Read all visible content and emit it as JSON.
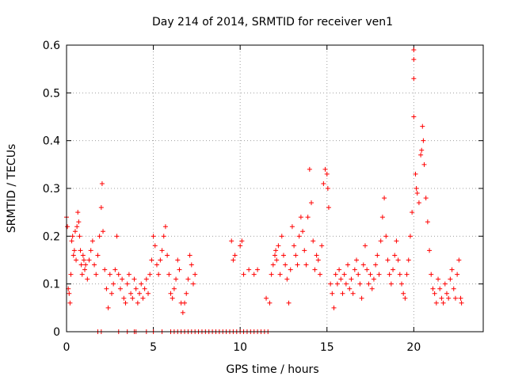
{
  "chart_data": {
    "type": "scatter",
    "title": "Day 214 of 2014, SRMTID for receiver ven1",
    "xlabel": "GPS time / hours",
    "ylabel": "SRMTID / TECUs",
    "xlim": [
      0,
      24
    ],
    "ylim": [
      0,
      0.6
    ],
    "xticks": [
      0,
      5,
      10,
      15,
      20
    ],
    "yticks": [
      0,
      0.1,
      0.2,
      0.3,
      0.4,
      0.5,
      0.6
    ],
    "xtick_labels": [
      "0",
      "5",
      "10",
      "15",
      "20"
    ],
    "ytick_labels": [
      "0",
      "0.1",
      "0.2",
      "0.3",
      "0.4",
      "0.5",
      "0.6"
    ],
    "grid": true,
    "marker": "+",
    "series": [
      {
        "name": "ven1",
        "color": "#ff0000",
        "points": [
          [
            0.0,
            0.24
          ],
          [
            0.05,
            0.22
          ],
          [
            0.1,
            0.09
          ],
          [
            0.15,
            0.08
          ],
          [
            0.2,
            0.06
          ],
          [
            0.25,
            0.12
          ],
          [
            0.3,
            0.19
          ],
          [
            0.35,
            0.2
          ],
          [
            0.4,
            0.16
          ],
          [
            0.45,
            0.17
          ],
          [
            0.5,
            0.21
          ],
          [
            0.55,
            0.15
          ],
          [
            0.6,
            0.22
          ],
          [
            0.65,
            0.25
          ],
          [
            0.7,
            0.23
          ],
          [
            0.75,
            0.2
          ],
          [
            0.8,
            0.17
          ],
          [
            0.85,
            0.14
          ],
          [
            0.9,
            0.12
          ],
          [
            0.95,
            0.16
          ],
          [
            1.0,
            0.15
          ],
          [
            1.05,
            0.13
          ],
          [
            1.1,
            0.14
          ],
          [
            1.2,
            0.11
          ],
          [
            1.3,
            0.15
          ],
          [
            1.4,
            0.17
          ],
          [
            1.5,
            0.19
          ],
          [
            1.6,
            0.14
          ],
          [
            1.7,
            0.12
          ],
          [
            1.8,
            0.16
          ],
          [
            1.9,
            0.2
          ],
          [
            2.0,
            0.26
          ],
          [
            2.05,
            0.31
          ],
          [
            2.1,
            0.21
          ],
          [
            2.2,
            0.13
          ],
          [
            2.3,
            0.09
          ],
          [
            2.4,
            0.05
          ],
          [
            2.5,
            0.12
          ],
          [
            2.6,
            0.08
          ],
          [
            2.7,
            0.1
          ],
          [
            2.8,
            0.13
          ],
          [
            2.9,
            0.2
          ],
          [
            3.0,
            0.12
          ],
          [
            3.1,
            0.09
          ],
          [
            3.2,
            0.11
          ],
          [
            3.3,
            0.07
          ],
          [
            3.4,
            0.06
          ],
          [
            3.5,
            0.1
          ],
          [
            3.6,
            0.12
          ],
          [
            3.7,
            0.08
          ],
          [
            3.8,
            0.07
          ],
          [
            3.9,
            0.11
          ],
          [
            4.0,
            0.09
          ],
          [
            4.1,
            0.06
          ],
          [
            4.2,
            0.08
          ],
          [
            4.3,
            0.1
          ],
          [
            4.4,
            0.07
          ],
          [
            4.5,
            0.09
          ],
          [
            4.6,
            0.11
          ],
          [
            4.7,
            0.08
          ],
          [
            4.8,
            0.12
          ],
          [
            4.9,
            0.15
          ],
          [
            5.0,
            0.2
          ],
          [
            5.1,
            0.18
          ],
          [
            5.2,
            0.14
          ],
          [
            5.3,
            0.12
          ],
          [
            5.4,
            0.15
          ],
          [
            5.5,
            0.17
          ],
          [
            5.6,
            0.2
          ],
          [
            5.7,
            0.22
          ],
          [
            5.8,
            0.16
          ],
          [
            5.9,
            0.12
          ],
          [
            6.0,
            0.08
          ],
          [
            6.1,
            0.07
          ],
          [
            6.2,
            0.09
          ],
          [
            6.3,
            0.11
          ],
          [
            6.4,
            0.15
          ],
          [
            6.5,
            0.13
          ],
          [
            6.6,
            0.06
          ],
          [
            6.7,
            0.04
          ],
          [
            6.8,
            0.06
          ],
          [
            6.9,
            0.08
          ],
          [
            7.0,
            0.11
          ],
          [
            7.1,
            0.16
          ],
          [
            7.2,
            0.14
          ],
          [
            7.3,
            0.1
          ],
          [
            7.4,
            0.12
          ],
          [
            9.5,
            0.19
          ],
          [
            9.6,
            0.15
          ],
          [
            9.7,
            0.16
          ],
          [
            10.0,
            0.18
          ],
          [
            10.1,
            0.19
          ],
          [
            10.2,
            0.12
          ],
          [
            10.5,
            0.13
          ],
          [
            10.8,
            0.12
          ],
          [
            11.0,
            0.13
          ],
          [
            11.5,
            0.07
          ],
          [
            11.7,
            0.06
          ],
          [
            11.8,
            0.12
          ],
          [
            11.9,
            0.14
          ],
          [
            12.0,
            0.16
          ],
          [
            12.05,
            0.17
          ],
          [
            12.1,
            0.15
          ],
          [
            12.2,
            0.18
          ],
          [
            12.3,
            0.12
          ],
          [
            12.4,
            0.2
          ],
          [
            12.5,
            0.16
          ],
          [
            12.6,
            0.14
          ],
          [
            12.7,
            0.11
          ],
          [
            12.8,
            0.06
          ],
          [
            12.9,
            0.13
          ],
          [
            13.0,
            0.22
          ],
          [
            13.1,
            0.18
          ],
          [
            13.2,
            0.16
          ],
          [
            13.3,
            0.14
          ],
          [
            13.4,
            0.2
          ],
          [
            13.5,
            0.24
          ],
          [
            13.6,
            0.21
          ],
          [
            13.7,
            0.17
          ],
          [
            13.8,
            0.14
          ],
          [
            13.9,
            0.24
          ],
          [
            14.0,
            0.34
          ],
          [
            14.1,
            0.27
          ],
          [
            14.2,
            0.19
          ],
          [
            14.3,
            0.13
          ],
          [
            14.4,
            0.16
          ],
          [
            14.5,
            0.15
          ],
          [
            14.6,
            0.12
          ],
          [
            14.7,
            0.18
          ],
          [
            14.8,
            0.31
          ],
          [
            14.9,
            0.34
          ],
          [
            15.0,
            0.33
          ],
          [
            15.05,
            0.3
          ],
          [
            15.1,
            0.26
          ],
          [
            15.2,
            0.1
          ],
          [
            15.3,
            0.08
          ],
          [
            15.4,
            0.05
          ],
          [
            15.5,
            0.12
          ],
          [
            15.6,
            0.1
          ],
          [
            15.7,
            0.13
          ],
          [
            15.8,
            0.11
          ],
          [
            15.9,
            0.08
          ],
          [
            16.0,
            0.12
          ],
          [
            16.1,
            0.1
          ],
          [
            16.2,
            0.14
          ],
          [
            16.3,
            0.09
          ],
          [
            16.4,
            0.11
          ],
          [
            16.5,
            0.08
          ],
          [
            16.6,
            0.13
          ],
          [
            16.7,
            0.15
          ],
          [
            16.8,
            0.12
          ],
          [
            16.9,
            0.1
          ],
          [
            17.0,
            0.07
          ],
          [
            17.1,
            0.14
          ],
          [
            17.2,
            0.18
          ],
          [
            17.3,
            0.13
          ],
          [
            17.4,
            0.1
          ],
          [
            17.5,
            0.12
          ],
          [
            17.6,
            0.09
          ],
          [
            17.7,
            0.11
          ],
          [
            17.8,
            0.14
          ],
          [
            17.9,
            0.16
          ],
          [
            18.0,
            0.12
          ],
          [
            18.1,
            0.19
          ],
          [
            18.2,
            0.24
          ],
          [
            18.3,
            0.28
          ],
          [
            18.4,
            0.2
          ],
          [
            18.5,
            0.15
          ],
          [
            18.6,
            0.12
          ],
          [
            18.7,
            0.1
          ],
          [
            18.8,
            0.13
          ],
          [
            18.9,
            0.16
          ],
          [
            19.0,
            0.19
          ],
          [
            19.1,
            0.15
          ],
          [
            19.2,
            0.12
          ],
          [
            19.3,
            0.1
          ],
          [
            19.4,
            0.08
          ],
          [
            19.5,
            0.07
          ],
          [
            19.6,
            0.12
          ],
          [
            19.7,
            0.15
          ],
          [
            19.8,
            0.2
          ],
          [
            19.9,
            0.25
          ],
          [
            20.0,
            0.59
          ],
          [
            20.0,
            0.57
          ],
          [
            20.0,
            0.53
          ],
          [
            20.0,
            0.45
          ],
          [
            20.1,
            0.33
          ],
          [
            20.15,
            0.3
          ],
          [
            20.2,
            0.29
          ],
          [
            20.3,
            0.27
          ],
          [
            20.4,
            0.37
          ],
          [
            20.45,
            0.38
          ],
          [
            20.5,
            0.43
          ],
          [
            20.55,
            0.4
          ],
          [
            20.6,
            0.35
          ],
          [
            20.7,
            0.28
          ],
          [
            20.8,
            0.23
          ],
          [
            20.9,
            0.17
          ],
          [
            21.0,
            0.12
          ],
          [
            21.1,
            0.09
          ],
          [
            21.2,
            0.08
          ],
          [
            21.3,
            0.06
          ],
          [
            21.4,
            0.11
          ],
          [
            21.5,
            0.09
          ],
          [
            21.6,
            0.07
          ],
          [
            21.7,
            0.06
          ],
          [
            21.8,
            0.1
          ],
          [
            21.9,
            0.08
          ],
          [
            22.0,
            0.07
          ],
          [
            22.1,
            0.11
          ],
          [
            22.2,
            0.13
          ],
          [
            22.3,
            0.09
          ],
          [
            22.4,
            0.07
          ],
          [
            22.5,
            0.12
          ],
          [
            22.6,
            0.15
          ],
          [
            22.7,
            0.07
          ],
          [
            22.75,
            0.06
          ],
          [
            1.8,
            0.0
          ],
          [
            2.0,
            0.0
          ],
          [
            3.0,
            0.0
          ],
          [
            3.5,
            0.0
          ],
          [
            3.9,
            0.0
          ],
          [
            4.0,
            0.0
          ],
          [
            4.6,
            0.0
          ],
          [
            5.0,
            0.0
          ],
          [
            5.5,
            0.0
          ],
          [
            6.0,
            0.0
          ],
          [
            6.2,
            0.0
          ],
          [
            6.4,
            0.0
          ],
          [
            6.6,
            0.0
          ],
          [
            6.8,
            0.0
          ],
          [
            7.0,
            0.0
          ],
          [
            7.2,
            0.0
          ],
          [
            7.4,
            0.0
          ],
          [
            7.6,
            0.0
          ],
          [
            7.8,
            0.0
          ],
          [
            8.0,
            0.0
          ],
          [
            8.2,
            0.0
          ],
          [
            8.4,
            0.0
          ],
          [
            8.6,
            0.0
          ],
          [
            8.8,
            0.0
          ],
          [
            9.0,
            0.0
          ],
          [
            9.2,
            0.0
          ],
          [
            9.4,
            0.0
          ],
          [
            9.6,
            0.0
          ],
          [
            9.8,
            0.0
          ],
          [
            10.0,
            0.0
          ],
          [
            10.2,
            0.0
          ],
          [
            10.4,
            0.0
          ],
          [
            10.6,
            0.0
          ],
          [
            10.8,
            0.0
          ],
          [
            11.0,
            0.0
          ],
          [
            11.2,
            0.0
          ],
          [
            11.4,
            0.0
          ],
          [
            11.6,
            0.0
          ]
        ]
      }
    ]
  }
}
